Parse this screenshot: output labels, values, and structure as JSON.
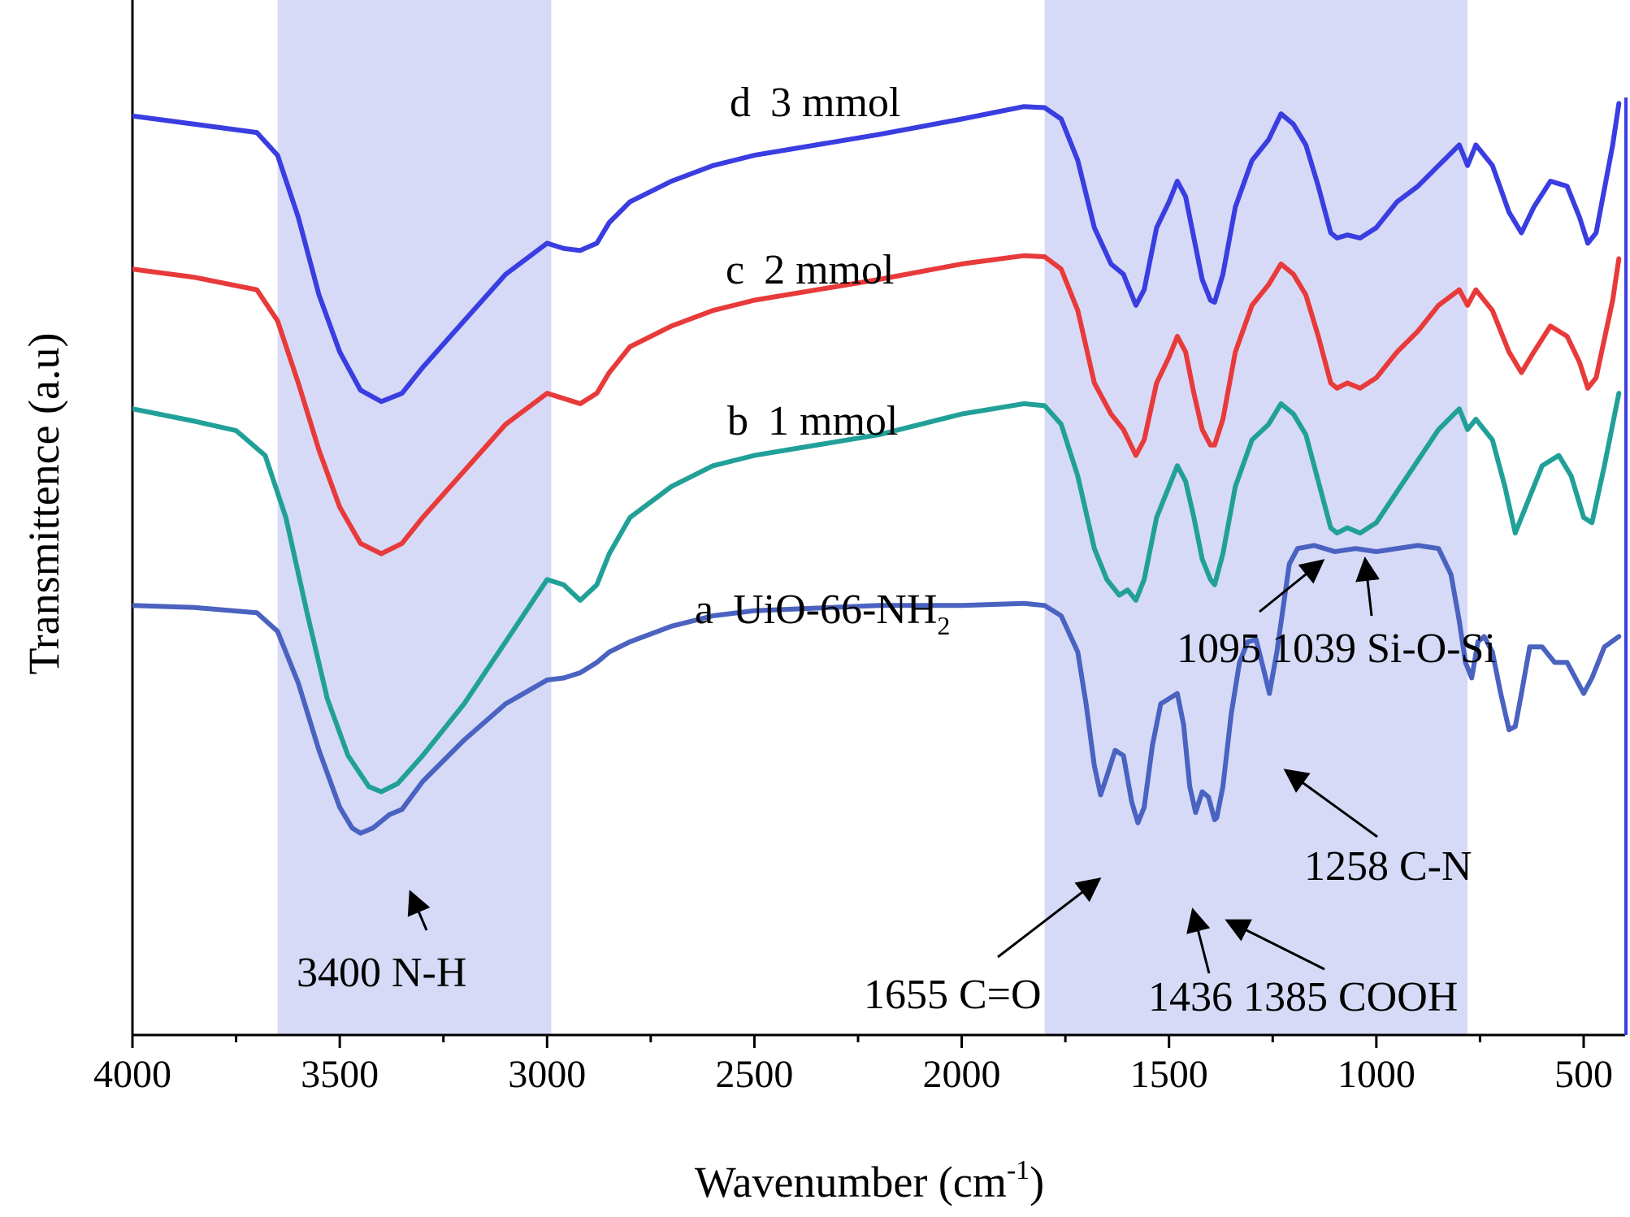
{
  "chart_data": {
    "type": "line",
    "title": "",
    "xlabel": "Wavenumber (cm",
    "xlabel_sup": "-1",
    "xlabel_tail": ")",
    "ylabel": "Transmittence (a.u)",
    "xlim": [
      4000,
      400
    ],
    "ylim": [
      0,
      100
    ],
    "x_ticks": [
      4000,
      3500,
      3000,
      2500,
      2000,
      1500,
      1000,
      500
    ],
    "x_tick_labels": [
      "4000",
      "3500",
      "3000",
      "2500",
      "2000",
      "1500",
      "1000",
      "500"
    ],
    "shaded_regions": [
      {
        "from": 3650,
        "to": 2990
      },
      {
        "from": 1800,
        "to": 780
      }
    ],
    "series": [
      {
        "id": "d",
        "name": "d  3 mmol",
        "label_prefix": "d",
        "label_main": "3 mmol",
        "color": "#3a3de0",
        "points": [
          [
            4000,
            88.8
          ],
          [
            3850,
            88
          ],
          [
            3700,
            87.2
          ],
          [
            3650,
            85
          ],
          [
            3600,
            79
          ],
          [
            3550,
            71.5
          ],
          [
            3500,
            66
          ],
          [
            3450,
            62.3
          ],
          [
            3400,
            61.2
          ],
          [
            3350,
            62
          ],
          [
            3300,
            64.5
          ],
          [
            3200,
            69
          ],
          [
            3100,
            73.5
          ],
          [
            3000,
            76.5
          ],
          [
            2960,
            76
          ],
          [
            2920,
            75.8
          ],
          [
            2880,
            76.5
          ],
          [
            2850,
            78.5
          ],
          [
            2800,
            80.5
          ],
          [
            2700,
            82.5
          ],
          [
            2600,
            84
          ],
          [
            2500,
            85
          ],
          [
            2200,
            87
          ],
          [
            2000,
            88.5
          ],
          [
            1850,
            89.7
          ],
          [
            1800,
            89.6
          ],
          [
            1760,
            88.5
          ],
          [
            1720,
            84.5
          ],
          [
            1680,
            78
          ],
          [
            1640,
            74.5
          ],
          [
            1610,
            73.5
          ],
          [
            1580,
            70.5
          ],
          [
            1560,
            72
          ],
          [
            1530,
            78
          ],
          [
            1500,
            80.5
          ],
          [
            1480,
            82.5
          ],
          [
            1460,
            81
          ],
          [
            1440,
            77
          ],
          [
            1420,
            73
          ],
          [
            1400,
            71
          ],
          [
            1390,
            70.8
          ],
          [
            1370,
            73.5
          ],
          [
            1340,
            80
          ],
          [
            1300,
            84.5
          ],
          [
            1260,
            86.5
          ],
          [
            1230,
            89
          ],
          [
            1200,
            88
          ],
          [
            1170,
            86
          ],
          [
            1140,
            82
          ],
          [
            1110,
            77.5
          ],
          [
            1095,
            77
          ],
          [
            1070,
            77.3
          ],
          [
            1039,
            77
          ],
          [
            1000,
            78
          ],
          [
            950,
            80.5
          ],
          [
            900,
            82
          ],
          [
            850,
            84
          ],
          [
            800,
            86
          ],
          [
            780,
            84
          ],
          [
            760,
            86
          ],
          [
            720,
            84
          ],
          [
            680,
            79.5
          ],
          [
            650,
            77.5
          ],
          [
            620,
            80
          ],
          [
            580,
            82.5
          ],
          [
            540,
            82
          ],
          [
            510,
            79
          ],
          [
            490,
            76.5
          ],
          [
            470,
            77.5
          ],
          [
            430,
            86
          ],
          [
            415,
            90
          ]
        ]
      },
      {
        "id": "c",
        "name": "c  2 mmol",
        "label_prefix": "c",
        "label_main": "2 mmol",
        "color": "#e83a3a",
        "points": [
          [
            4000,
            74
          ],
          [
            3850,
            73.2
          ],
          [
            3700,
            72
          ],
          [
            3650,
            69
          ],
          [
            3600,
            63
          ],
          [
            3550,
            56.5
          ],
          [
            3500,
            51
          ],
          [
            3450,
            47.5
          ],
          [
            3400,
            46.5
          ],
          [
            3350,
            47.5
          ],
          [
            3300,
            50
          ],
          [
            3200,
            54.5
          ],
          [
            3100,
            59
          ],
          [
            3000,
            62
          ],
          [
            2960,
            61.5
          ],
          [
            2920,
            61
          ],
          [
            2880,
            62
          ],
          [
            2850,
            64
          ],
          [
            2800,
            66.5
          ],
          [
            2700,
            68.5
          ],
          [
            2600,
            70
          ],
          [
            2500,
            71
          ],
          [
            2200,
            73
          ],
          [
            2000,
            74.5
          ],
          [
            1850,
            75.3
          ],
          [
            1800,
            75.2
          ],
          [
            1760,
            74
          ],
          [
            1720,
            70
          ],
          [
            1680,
            63
          ],
          [
            1640,
            60
          ],
          [
            1610,
            58.5
          ],
          [
            1580,
            56
          ],
          [
            1560,
            57.5
          ],
          [
            1530,
            63
          ],
          [
            1500,
            65.5
          ],
          [
            1480,
            67.5
          ],
          [
            1460,
            66
          ],
          [
            1440,
            62
          ],
          [
            1420,
            58.5
          ],
          [
            1400,
            57
          ],
          [
            1390,
            57
          ],
          [
            1370,
            59.5
          ],
          [
            1340,
            66
          ],
          [
            1300,
            70.5
          ],
          [
            1260,
            72.5
          ],
          [
            1230,
            74.5
          ],
          [
            1200,
            73.5
          ],
          [
            1170,
            71.5
          ],
          [
            1140,
            67.5
          ],
          [
            1110,
            63
          ],
          [
            1095,
            62.5
          ],
          [
            1070,
            63
          ],
          [
            1039,
            62.5
          ],
          [
            1000,
            63.5
          ],
          [
            950,
            66
          ],
          [
            900,
            68
          ],
          [
            850,
            70.5
          ],
          [
            800,
            72
          ],
          [
            780,
            70.5
          ],
          [
            760,
            72
          ],
          [
            720,
            70
          ],
          [
            680,
            66
          ],
          [
            650,
            64
          ],
          [
            620,
            66
          ],
          [
            580,
            68.5
          ],
          [
            540,
            67.5
          ],
          [
            510,
            65
          ],
          [
            490,
            62.5
          ],
          [
            470,
            63.5
          ],
          [
            430,
            71
          ],
          [
            415,
            75
          ]
        ]
      },
      {
        "id": "b",
        "name": "b  1 mmol",
        "label_prefix": "b",
        "label_main": "1 mmol",
        "color": "#21a098",
        "points": [
          [
            4000,
            60.5
          ],
          [
            3850,
            59.3
          ],
          [
            3750,
            58.4
          ],
          [
            3680,
            56
          ],
          [
            3630,
            50
          ],
          [
            3580,
            41
          ],
          [
            3530,
            32.5
          ],
          [
            3480,
            27
          ],
          [
            3430,
            24
          ],
          [
            3400,
            23.5
          ],
          [
            3360,
            24.3
          ],
          [
            3300,
            27
          ],
          [
            3200,
            32
          ],
          [
            3100,
            38
          ],
          [
            3000,
            44
          ],
          [
            2960,
            43.5
          ],
          [
            2920,
            42
          ],
          [
            2880,
            43.5
          ],
          [
            2850,
            46.5
          ],
          [
            2800,
            50
          ],
          [
            2700,
            53
          ],
          [
            2600,
            55
          ],
          [
            2500,
            56
          ],
          [
            2200,
            58
          ],
          [
            2000,
            60
          ],
          [
            1850,
            61
          ],
          [
            1800,
            60.8
          ],
          [
            1760,
            59
          ],
          [
            1720,
            54
          ],
          [
            1680,
            47
          ],
          [
            1650,
            44
          ],
          [
            1620,
            42.5
          ],
          [
            1600,
            43
          ],
          [
            1580,
            42
          ],
          [
            1560,
            44
          ],
          [
            1530,
            50
          ],
          [
            1500,
            53
          ],
          [
            1480,
            55
          ],
          [
            1460,
            53.5
          ],
          [
            1440,
            50
          ],
          [
            1420,
            46
          ],
          [
            1400,
            44
          ],
          [
            1390,
            43.5
          ],
          [
            1370,
            46.5
          ],
          [
            1340,
            53
          ],
          [
            1300,
            57.5
          ],
          [
            1260,
            59
          ],
          [
            1230,
            61
          ],
          [
            1200,
            60
          ],
          [
            1170,
            58
          ],
          [
            1140,
            53.5
          ],
          [
            1110,
            49
          ],
          [
            1095,
            48.5
          ],
          [
            1070,
            49
          ],
          [
            1039,
            48.5
          ],
          [
            1000,
            49.5
          ],
          [
            950,
            52.5
          ],
          [
            900,
            55.5
          ],
          [
            850,
            58.5
          ],
          [
            800,
            60.5
          ],
          [
            780,
            58.5
          ],
          [
            760,
            59.5
          ],
          [
            720,
            57.5
          ],
          [
            690,
            53
          ],
          [
            665,
            48.5
          ],
          [
            640,
            51
          ],
          [
            600,
            55
          ],
          [
            560,
            56
          ],
          [
            530,
            54
          ],
          [
            500,
            50
          ],
          [
            480,
            49.5
          ],
          [
            450,
            55
          ],
          [
            415,
            62
          ]
        ]
      },
      {
        "id": "a",
        "name": "a  UiO-66-NH2",
        "label_prefix": "a",
        "label_main": "UiO-66-NH",
        "label_sub": "2",
        "color": "#4a62c0",
        "points": [
          [
            4000,
            41.5
          ],
          [
            3850,
            41.3
          ],
          [
            3700,
            40.8
          ],
          [
            3650,
            39
          ],
          [
            3600,
            34
          ],
          [
            3550,
            27.5
          ],
          [
            3500,
            22
          ],
          [
            3470,
            20
          ],
          [
            3450,
            19.5
          ],
          [
            3420,
            20
          ],
          [
            3380,
            21.3
          ],
          [
            3350,
            21.8
          ],
          [
            3300,
            24.5
          ],
          [
            3200,
            28.5
          ],
          [
            3100,
            32
          ],
          [
            3000,
            34.3
          ],
          [
            2960,
            34.5
          ],
          [
            2920,
            35
          ],
          [
            2880,
            36
          ],
          [
            2850,
            37
          ],
          [
            2800,
            38
          ],
          [
            2700,
            39.5
          ],
          [
            2600,
            40.5
          ],
          [
            2500,
            41
          ],
          [
            2200,
            41.5
          ],
          [
            2000,
            41.5
          ],
          [
            1850,
            41.7
          ],
          [
            1800,
            41.5
          ],
          [
            1760,
            40.5
          ],
          [
            1720,
            37
          ],
          [
            1700,
            32
          ],
          [
            1680,
            26
          ],
          [
            1665,
            23.2
          ],
          [
            1650,
            25
          ],
          [
            1630,
            27.5
          ],
          [
            1610,
            27
          ],
          [
            1590,
            22.5
          ],
          [
            1575,
            20.5
          ],
          [
            1560,
            22
          ],
          [
            1540,
            28
          ],
          [
            1520,
            32
          ],
          [
            1500,
            32.5
          ],
          [
            1480,
            33
          ],
          [
            1465,
            30
          ],
          [
            1450,
            24
          ],
          [
            1436,
            21.5
          ],
          [
            1420,
            23.5
          ],
          [
            1405,
            23
          ],
          [
            1390,
            20.8
          ],
          [
            1385,
            21
          ],
          [
            1370,
            24
          ],
          [
            1350,
            31
          ],
          [
            1330,
            36
          ],
          [
            1310,
            38
          ],
          [
            1290,
            38.2
          ],
          [
            1270,
            35
          ],
          [
            1258,
            33
          ],
          [
            1240,
            37
          ],
          [
            1210,
            45.5
          ],
          [
            1190,
            47
          ],
          [
            1150,
            47.3
          ],
          [
            1100,
            46.7
          ],
          [
            1050,
            47
          ],
          [
            1000,
            46.7
          ],
          [
            950,
            47
          ],
          [
            900,
            47.3
          ],
          [
            850,
            47
          ],
          [
            820,
            44.5
          ],
          [
            800,
            40
          ],
          [
            785,
            36
          ],
          [
            770,
            34.5
          ],
          [
            755,
            38
          ],
          [
            740,
            38.5
          ],
          [
            720,
            37
          ],
          [
            700,
            33
          ],
          [
            680,
            29.5
          ],
          [
            665,
            29.8
          ],
          [
            650,
            33
          ],
          [
            630,
            37.5
          ],
          [
            600,
            37.5
          ],
          [
            570,
            36
          ],
          [
            540,
            36
          ],
          [
            520,
            34.5
          ],
          [
            500,
            33
          ],
          [
            480,
            34.5
          ],
          [
            450,
            37.5
          ],
          [
            415,
            38.5
          ]
        ]
      }
    ],
    "annotations": [
      {
        "id": "nh",
        "text": "3400 N-H"
      },
      {
        "id": "co",
        "text": "1655 C=O"
      },
      {
        "id": "cooh",
        "text": "1436 1385 COOH"
      },
      {
        "id": "cn",
        "text": "1258 C-N"
      },
      {
        "id": "sio",
        "text": "1095 1039 Si-O-Si"
      }
    ]
  }
}
